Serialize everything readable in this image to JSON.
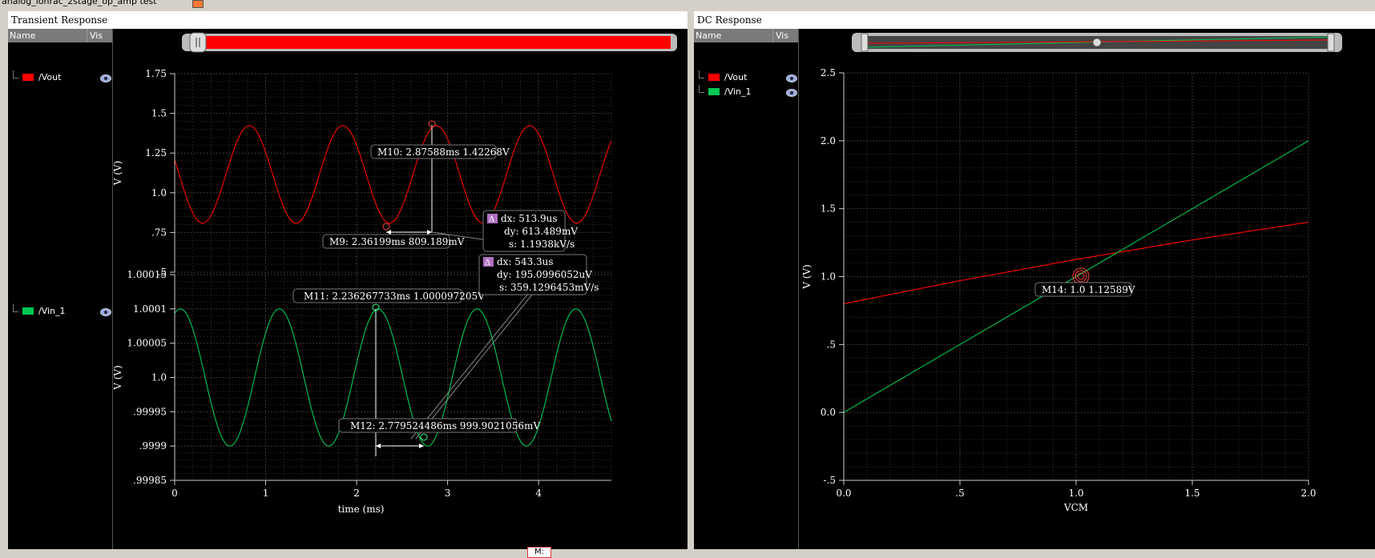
{
  "window": {
    "title": "analog_lonrac_2stage_op_amp test"
  },
  "panes": {
    "transient": {
      "title": "Transient Response",
      "legend_headers": {
        "name": "Name",
        "vis": "Vis"
      },
      "signals": [
        {
          "name": "/Vout",
          "color": "#ff0000"
        },
        {
          "name": "/Vin_1",
          "color": "#00c853"
        }
      ],
      "upper_y_ticks": [
        "1.75",
        "1.5",
        "1.25",
        "1.0",
        ".75",
        ".5"
      ],
      "lower_y_ticks": [
        "1.00015",
        "1.0001",
        "1.00005",
        "1.0",
        ".99995",
        ".9999",
        ".99985"
      ],
      "x_ticks": [
        "0",
        "1",
        "2",
        "3",
        "4"
      ],
      "ylabel": "V (V)",
      "xlabel": "time (ms)",
      "markers": {
        "m10": "M10: 2.87588ms 1.42268V",
        "m9": "M9: 2.36199ms 809.189mV",
        "m11": "M11: 2.236267733ms 1.000097205V",
        "m12": "M12: 2.779524486ms 999.9021056mV"
      },
      "delta1": {
        "dx": "dx: 513.9us",
        "dy": "dy: 613.489mV",
        "s": "s: 1.1938kV/s"
      },
      "delta2": {
        "dx": "dx: 543.3us",
        "dy": "dy: 195.0996052uV",
        "s": "s: 359.1296453mV/s"
      }
    },
    "dc": {
      "title": "DC Response",
      "legend_headers": {
        "name": "Name",
        "vis": "Vis"
      },
      "signals": [
        {
          "name": "/Vout",
          "color": "#ff0000"
        },
        {
          "name": "/Vin_1",
          "color": "#00c853"
        }
      ],
      "y_ticks": [
        "2.5",
        "2.0",
        "1.5",
        "1.0",
        ".5",
        "0.0",
        "-.5"
      ],
      "x_ticks": [
        "0.0",
        ".5",
        "1.0",
        "1.5",
        "2.0"
      ],
      "ylabel": "V (V)",
      "xlabel": "VCM",
      "markers": {
        "m14": "M14: 1.0 1.12589V"
      }
    }
  },
  "bottom_tab": "M:",
  "chart_data": [
    {
      "type": "line",
      "x_unit": "ms",
      "xlabel": "time (ms)",
      "ylabel": "V (V)",
      "xlim": [
        0,
        4.8
      ],
      "series": [
        {
          "name": "/Vout",
          "color": "#ff0000",
          "ylim": [
            0.5,
            1.75
          ],
          "waveform": {
            "offset": 1.1158,
            "amplitude": 0.3067,
            "period_ms": 1.0278,
            "peak_at_ms": 2.87588
          }
        },
        {
          "name": "/Vin_1",
          "color": "#00c853",
          "ylim": [
            0.99985,
            1.00015
          ],
          "waveform": {
            "offset": 1.0,
            "amplitude": 0.0001,
            "period_ms": 1.0866,
            "peak_at_ms": 2.236267733
          }
        }
      ]
    },
    {
      "type": "line",
      "xlabel": "VCM",
      "ylabel": "V (V)",
      "xlim": [
        0,
        2.0
      ],
      "ylim": [
        -0.5,
        2.5
      ],
      "series": [
        {
          "name": "/Vout",
          "color": "#ff0000",
          "x": [
            0,
            0.5,
            1.0,
            1.5,
            2.0
          ],
          "y": [
            0.8,
            0.97,
            1.12589,
            1.27,
            1.4
          ]
        },
        {
          "name": "/Vin_1",
          "color": "#00c853",
          "x": [
            0,
            0.5,
            1.0,
            1.5,
            2.0
          ],
          "y": [
            0.0,
            0.5,
            1.0,
            1.5,
            2.0
          ]
        }
      ]
    }
  ]
}
